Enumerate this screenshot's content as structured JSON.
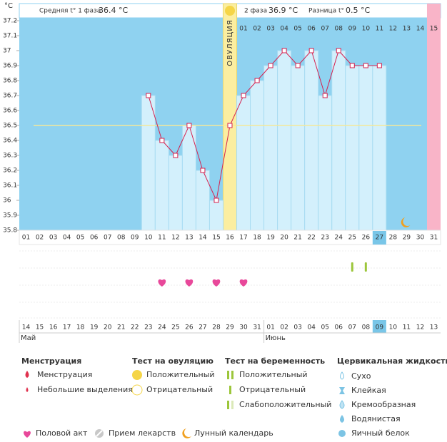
{
  "chart_data": {
    "type": "line",
    "header": {
      "phase1_label": "Средняя t° 1 фаза",
      "phase1_avg": "36.4 °C",
      "phase2_label": "2 фаза",
      "phase2_avg": "36.9 °C",
      "diff_label": "Разница t°",
      "diff": "0.5 °C"
    },
    "y_unit": "°C",
    "ylim": [
      35.8,
      37.2
    ],
    "yticks": [
      35.8,
      35.9,
      36,
      36.1,
      36.2,
      36.3,
      36.4,
      36.5,
      36.6,
      36.7,
      36.8,
      36.9,
      37,
      37.1,
      37.2
    ],
    "categories": [
      "01",
      "02",
      "03",
      "04",
      "05",
      "06",
      "07",
      "08",
      "09",
      "10",
      "11",
      "12",
      "13",
      "14",
      "15",
      "16",
      "17",
      "18",
      "19",
      "20",
      "21",
      "22",
      "23",
      "24",
      "25",
      "26",
      "27",
      "28",
      "29",
      "30",
      "31"
    ],
    "values": [
      null,
      null,
      null,
      null,
      null,
      null,
      null,
      null,
      null,
      36.7,
      36.4,
      36.3,
      36.5,
      36.2,
      36.0,
      36.5,
      36.7,
      36.8,
      36.9,
      37.0,
      36.9,
      37.0,
      36.7,
      37.0,
      36.9,
      36.9,
      36.9,
      null,
      null,
      null,
      null
    ],
    "color": "#d6204e",
    "coverline": 36.5,
    "phase2_labels": [
      null,
      null,
      null,
      null,
      null,
      null,
      null,
      null,
      null,
      null,
      null,
      null,
      null,
      null,
      null,
      null,
      "01",
      "02",
      "03",
      "04",
      "05",
      "06",
      "07",
      "08",
      "09",
      "10",
      "11",
      "12",
      "13",
      "14",
      "15"
    ],
    "ovulation": [
      null,
      null,
      null,
      null,
      null,
      null,
      null,
      null,
      null,
      null,
      null,
      null,
      null,
      null,
      null,
      "ОВУЛЯЦИЯ",
      null,
      null,
      null,
      null,
      null,
      null,
      null,
      null,
      null,
      null,
      null,
      null,
      null,
      null,
      null
    ],
    "menstruation": [
      false,
      false,
      false,
      false,
      false,
      false,
      false,
      false,
      false,
      false,
      false,
      false,
      false,
      false,
      false,
      false,
      false,
      false,
      false,
      false,
      false,
      false,
      false,
      false,
      false,
      false,
      false,
      false,
      false,
      false,
      true
    ],
    "today": 26,
    "dates": [
      "14",
      "15",
      "16",
      "17",
      "18",
      "19",
      "20",
      "21",
      "22",
      "23",
      "24",
      "25",
      "26",
      "27",
      "28",
      "29",
      "30",
      "31",
      "01",
      "02",
      "03",
      "04",
      "05",
      "06",
      "07",
      "08",
      "09",
      "10",
      "11",
      "12",
      "13"
    ],
    "weekend": [
      false,
      true,
      true,
      false,
      false,
      false,
      false,
      false,
      true,
      true,
      false,
      false,
      false,
      false,
      false,
      true,
      true,
      false,
      false,
      false,
      false,
      false,
      true,
      true,
      false,
      false,
      false,
      false,
      false,
      true,
      true
    ],
    "months": [
      "Май",
      null,
      null,
      null,
      null,
      null,
      null,
      null,
      null,
      null,
      null,
      null,
      null,
      null,
      null,
      null,
      null,
      null,
      "Июнь",
      null,
      null,
      null,
      null,
      null,
      null,
      null,
      null,
      null,
      null,
      null,
      null
    ],
    "intercourse_days": [
      10,
      12,
      14,
      16
    ],
    "pregnancy_test_negative_days": [
      24,
      25
    ],
    "moon_days": [
      28
    ],
    "legend": {
      "menstruation": {
        "title": "Менструация",
        "items": [
          "Менструация",
          "Небольшие выделения"
        ]
      },
      "ovulation_test": {
        "title": "Тест на овуляцию",
        "items": [
          "Положительный",
          "Отрицательный"
        ]
      },
      "pregnancy_test": {
        "title": "Тест на беременность",
        "items": [
          "Положительный",
          "Отрицательный",
          "Слабоположительный"
        ]
      },
      "cervical": {
        "title": "Цервикальная жидкость",
        "items": [
          "Сухо",
          "Клейкая",
          "Кремообразная",
          "Водянистая",
          "Яичный белок"
        ]
      },
      "other": [
        "Половой акт",
        "Прием лекарств",
        "Лунный календарь"
      ]
    }
  }
}
